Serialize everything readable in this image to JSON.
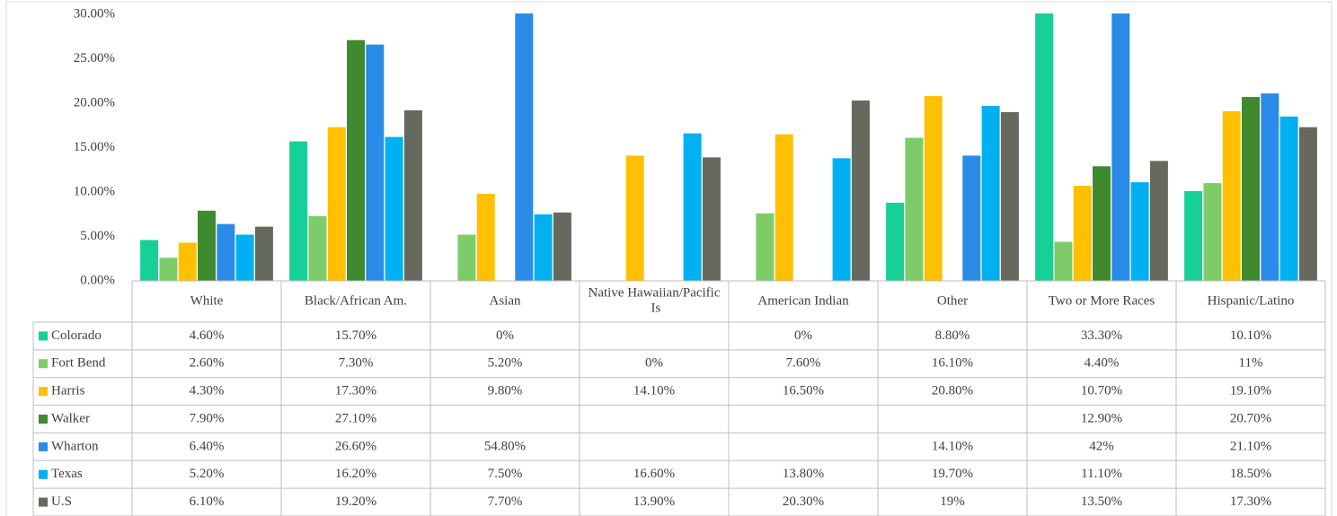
{
  "chart_data": {
    "type": "bar",
    "categories": [
      "White",
      "Black/African Am.",
      "Asian",
      "Native Hawaiian/Pacific Is",
      "American Indian",
      "Other",
      "Two or More Races",
      "Hispanic/Latino"
    ],
    "series": [
      {
        "name": "Colorado",
        "color": "#17d097",
        "values": [
          4.6,
          15.7,
          0,
          null,
          0,
          8.8,
          33.3,
          10.1
        ],
        "value_labels": [
          "4.60%",
          "15.70%",
          "0%",
          null,
          "0%",
          "8.80%",
          "33.30%",
          "10.10%"
        ]
      },
      {
        "name": "Fort Bend",
        "color": "#7dcc69",
        "values": [
          2.6,
          7.3,
          5.2,
          0,
          7.6,
          16.1,
          4.4,
          11
        ],
        "value_labels": [
          "2.60%",
          "7.30%",
          "5.20%",
          "0%",
          "7.60%",
          "16.10%",
          "4.40%",
          "11%"
        ]
      },
      {
        "name": "Harris",
        "color": "#fec000",
        "values": [
          4.3,
          17.3,
          9.8,
          14.1,
          16.5,
          20.8,
          10.7,
          19.1
        ],
        "value_labels": [
          "4.30%",
          "17.30%",
          "9.80%",
          "14.10%",
          "16.50%",
          "20.80%",
          "10.70%",
          "19.10%"
        ]
      },
      {
        "name": "Walker",
        "color": "#3f8a2f",
        "values": [
          7.9,
          27.1,
          null,
          null,
          null,
          null,
          12.9,
          20.7
        ],
        "value_labels": [
          "7.90%",
          "27.10%",
          null,
          null,
          null,
          null,
          "12.90%",
          "20.70%"
        ]
      },
      {
        "name": "Wharton",
        "color": "#2a8be9",
        "values": [
          6.4,
          26.6,
          54.8,
          null,
          null,
          14.1,
          42,
          21.1
        ],
        "value_labels": [
          "6.40%",
          "26.60%",
          "54.80%",
          null,
          null,
          "14.10%",
          "42%",
          "21.10%"
        ]
      },
      {
        "name": "Texas",
        "color": "#00b0f0",
        "values": [
          5.2,
          16.2,
          7.5,
          16.6,
          13.8,
          19.7,
          11.1,
          18.5
        ],
        "value_labels": [
          "5.20%",
          "16.20%",
          "7.50%",
          "16.60%",
          "13.80%",
          "19.70%",
          "11.10%",
          "18.50%"
        ]
      },
      {
        "name": "U.S",
        "color": "#666a5e",
        "values": [
          6.1,
          19.2,
          7.7,
          13.9,
          20.3,
          19,
          13.5,
          17.3
        ],
        "value_labels": [
          "6.10%",
          "19.20%",
          "7.70%",
          "13.90%",
          "20.30%",
          "19%",
          "13.50%",
          "17.30%"
        ]
      }
    ],
    "ylim": [
      0,
      30
    ],
    "yticks": [
      {
        "value": 0,
        "label": "0.00%"
      },
      {
        "value": 5,
        "label": "5.00%"
      },
      {
        "value": 10,
        "label": "10.00%"
      },
      {
        "value": 15,
        "label": "15.00%"
      },
      {
        "value": 20,
        "label": "20.00%"
      },
      {
        "value": 25,
        "label": "25.00%"
      },
      {
        "value": 30,
        "label": "30.00%"
      }
    ],
    "grid": false
  }
}
